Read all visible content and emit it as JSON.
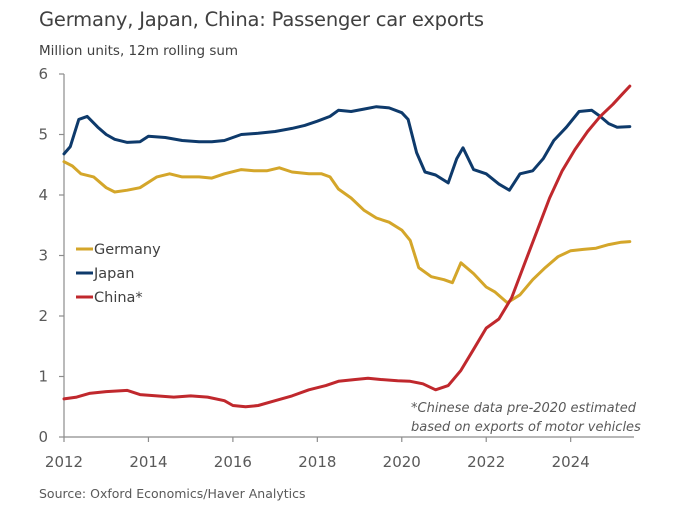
{
  "header": {
    "title": "Germany, Japan, China: Passenger car exports",
    "subtitle": "Million units, 12m rolling sum"
  },
  "footer": {
    "source": "Source: Oxford Economics/Haver Analytics"
  },
  "chart_data": {
    "type": "line",
    "title": "Germany, Japan, China: Passenger car exports",
    "subtitle": "Million units, 12m rolling sum",
    "xlabel": "",
    "ylabel": "Million units",
    "xlim": [
      2012,
      2025.5
    ],
    "ylim": [
      0,
      6
    ],
    "x_ticks": [
      2012,
      2014,
      2016,
      2018,
      2020,
      2022,
      2024
    ],
    "x_tick_labels": [
      "2012",
      "2014",
      "2016",
      "2018",
      "2020",
      "2022",
      "2024"
    ],
    "y_ticks": [
      0,
      1,
      2,
      3,
      4,
      5,
      6
    ],
    "y_tick_labels": [
      "0",
      "1",
      "2",
      "3",
      "4",
      "5",
      "6"
    ],
    "grid": false,
    "legend_position": "center-left",
    "annotation": [
      "*Chinese data pre-2020 estimated",
      "based on exports of motor vehicles"
    ],
    "series": [
      {
        "name": "Germany",
        "color": "#D4A62A",
        "x": [
          2012.0,
          2012.2,
          2012.4,
          2012.7,
          2013.0,
          2013.2,
          2013.5,
          2013.8,
          2014.2,
          2014.5,
          2014.8,
          2015.2,
          2015.5,
          2015.8,
          2016.2,
          2016.5,
          2016.8,
          2017.1,
          2017.4,
          2017.8,
          2018.1,
          2018.3,
          2018.5,
          2018.8,
          2019.1,
          2019.4,
          2019.7,
          2020.0,
          2020.2,
          2020.4,
          2020.7,
          2021.0,
          2021.2,
          2021.4,
          2021.7,
          2022.0,
          2022.2,
          2022.5,
          2022.8,
          2023.1,
          2023.4,
          2023.7,
          2024.0,
          2024.3,
          2024.6,
          2024.9,
          2025.2,
          2025.4
        ],
        "values": [
          4.55,
          4.48,
          4.35,
          4.3,
          4.12,
          4.05,
          4.08,
          4.12,
          4.3,
          4.35,
          4.3,
          4.3,
          4.28,
          4.35,
          4.42,
          4.4,
          4.4,
          4.45,
          4.38,
          4.35,
          4.35,
          4.3,
          4.1,
          3.95,
          3.75,
          3.62,
          3.55,
          3.42,
          3.25,
          2.8,
          2.65,
          2.6,
          2.55,
          2.88,
          2.7,
          2.48,
          2.4,
          2.22,
          2.35,
          2.6,
          2.8,
          2.98,
          3.08,
          3.1,
          3.12,
          3.18,
          3.22,
          3.23
        ]
      },
      {
        "name": "Japan",
        "color": "#0E3A6B",
        "x": [
          2012.0,
          2012.15,
          2012.35,
          2012.55,
          2012.8,
          2013.0,
          2013.2,
          2013.5,
          2013.8,
          2014.0,
          2014.4,
          2014.8,
          2015.2,
          2015.5,
          2015.8,
          2016.2,
          2016.6,
          2017.0,
          2017.4,
          2017.7,
          2018.0,
          2018.3,
          2018.5,
          2018.8,
          2019.1,
          2019.4,
          2019.7,
          2020.0,
          2020.15,
          2020.35,
          2020.55,
          2020.8,
          2021.1,
          2021.3,
          2021.45,
          2021.7,
          2022.0,
          2022.3,
          2022.55,
          2022.8,
          2023.1,
          2023.35,
          2023.6,
          2023.9,
          2024.2,
          2024.5,
          2024.7,
          2024.9,
          2025.1,
          2025.4
        ],
        "values": [
          4.68,
          4.8,
          5.25,
          5.3,
          5.12,
          5.0,
          4.92,
          4.87,
          4.88,
          4.97,
          4.95,
          4.9,
          4.88,
          4.88,
          4.9,
          5.0,
          5.02,
          5.05,
          5.1,
          5.15,
          5.22,
          5.3,
          5.4,
          5.38,
          5.42,
          5.46,
          5.44,
          5.36,
          5.25,
          4.7,
          4.38,
          4.33,
          4.2,
          4.6,
          4.78,
          4.42,
          4.35,
          4.18,
          4.08,
          4.35,
          4.4,
          4.6,
          4.9,
          5.12,
          5.38,
          5.4,
          5.3,
          5.18,
          5.12,
          5.13
        ]
      },
      {
        "name": "China*",
        "color": "#C0282D",
        "x": [
          2012.0,
          2012.3,
          2012.6,
          2013.0,
          2013.5,
          2013.8,
          2014.2,
          2014.6,
          2015.0,
          2015.4,
          2015.8,
          2016.0,
          2016.3,
          2016.6,
          2017.0,
          2017.4,
          2017.8,
          2018.2,
          2018.5,
          2018.9,
          2019.2,
          2019.5,
          2019.9,
          2020.2,
          2020.5,
          2020.8,
          2021.1,
          2021.4,
          2021.7,
          2022.0,
          2022.3,
          2022.6,
          2022.9,
          2023.2,
          2023.5,
          2023.8,
          2024.1,
          2024.4,
          2024.7,
          2025.0,
          2025.2,
          2025.4
        ],
        "values": [
          0.63,
          0.66,
          0.72,
          0.75,
          0.77,
          0.7,
          0.68,
          0.66,
          0.68,
          0.66,
          0.6,
          0.52,
          0.5,
          0.52,
          0.6,
          0.68,
          0.78,
          0.85,
          0.92,
          0.95,
          0.97,
          0.95,
          0.93,
          0.92,
          0.88,
          0.78,
          0.85,
          1.1,
          1.45,
          1.8,
          1.95,
          2.3,
          2.85,
          3.4,
          3.95,
          4.4,
          4.75,
          5.05,
          5.3,
          5.5,
          5.65,
          5.8
        ]
      }
    ]
  }
}
